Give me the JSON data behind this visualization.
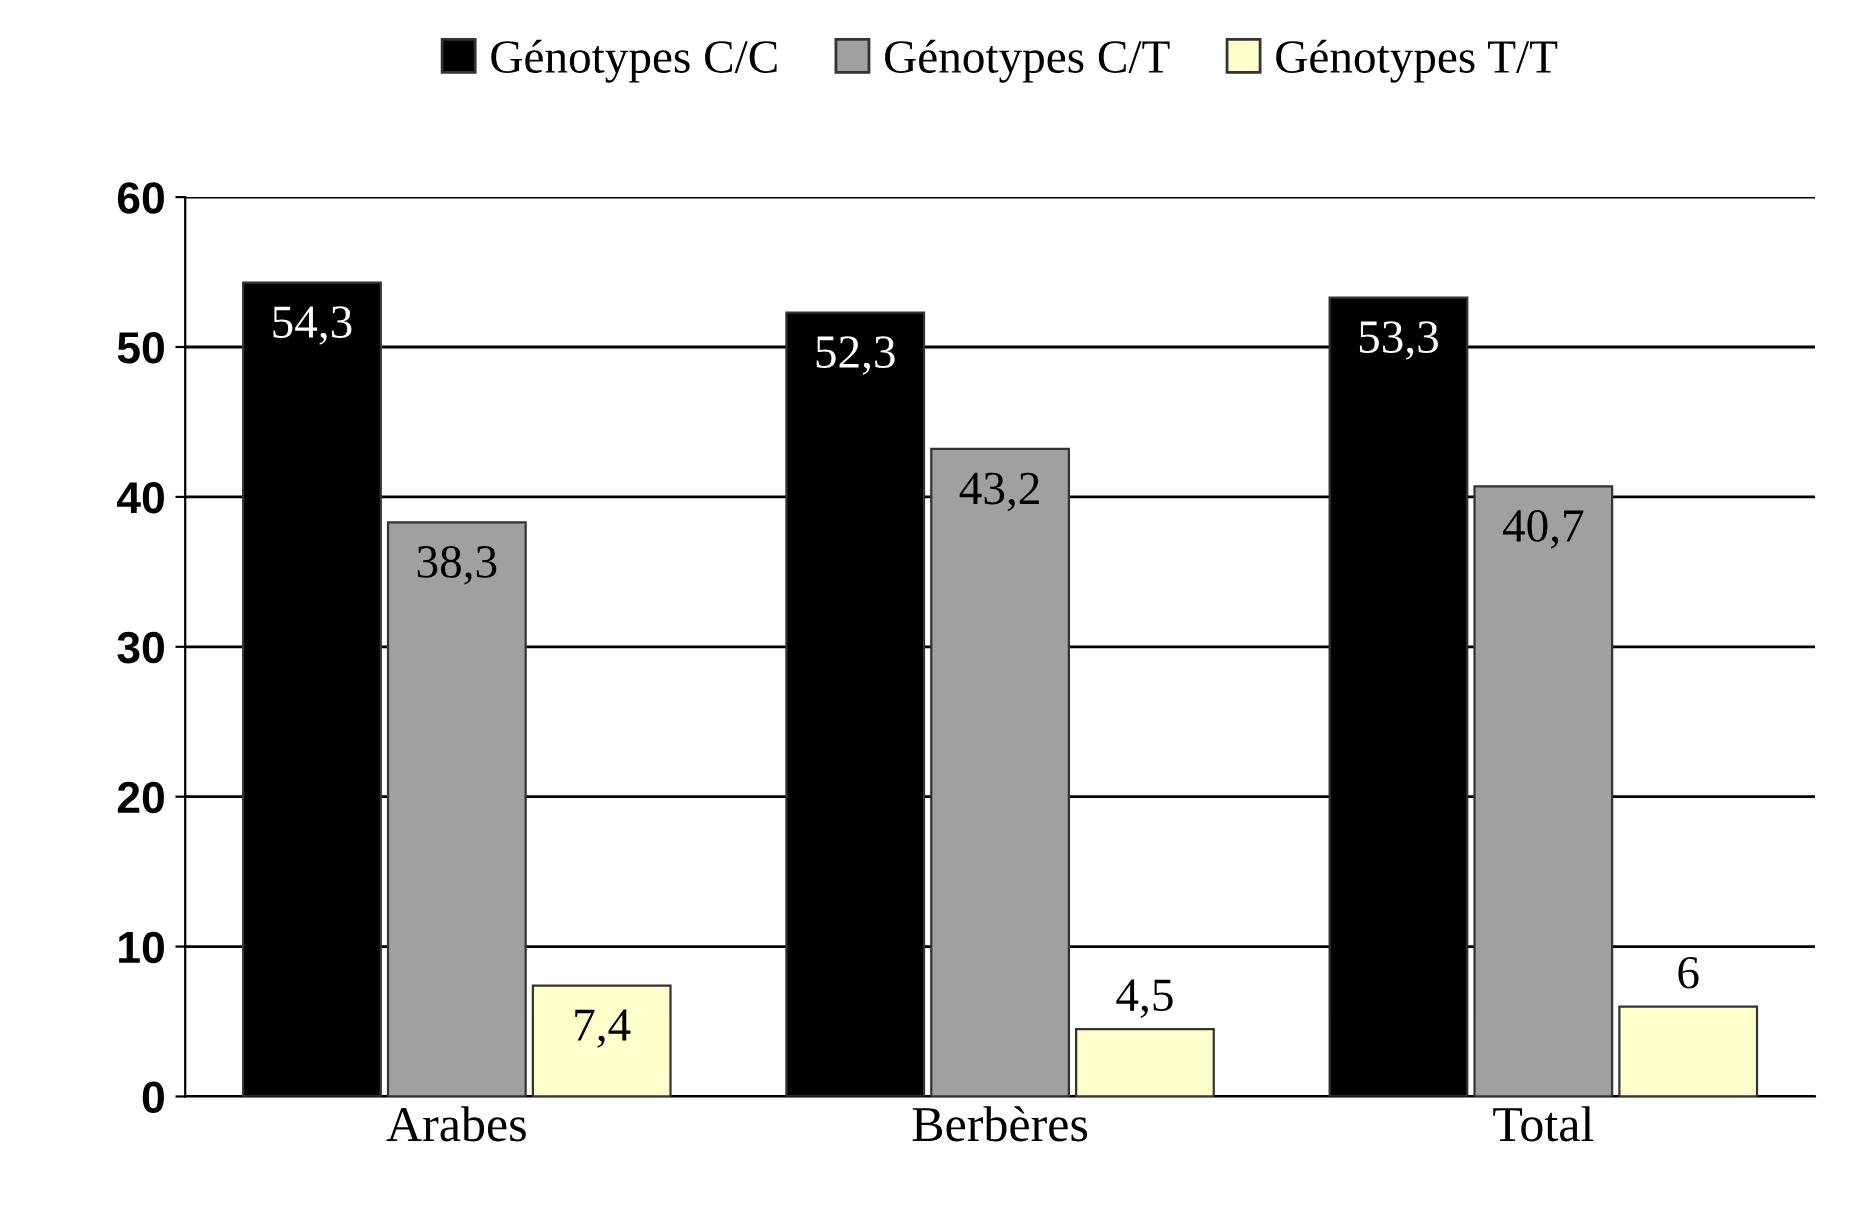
{
  "chart_data": {
    "type": "bar",
    "categories": [
      "Arabes",
      "Berbères",
      "Total"
    ],
    "series": [
      {
        "name": "Génotypes C/C",
        "color": "#000000",
        "values": [
          54.3,
          52.3,
          53.3
        ],
        "value_labels": [
          "54,3",
          "52,3",
          "53,3"
        ]
      },
      {
        "name": "Génotypes C/T",
        "color": "#a0a0a0",
        "values": [
          38.3,
          43.2,
          40.7
        ],
        "value_labels": [
          "38,3",
          "43,2",
          "40,7"
        ]
      },
      {
        "name": "Génotypes T/T",
        "color": "#ffffcc",
        "values": [
          7.4,
          4.5,
          6
        ],
        "value_labels": [
          "7,4",
          "4,5",
          "6"
        ]
      }
    ],
    "ylim": [
      0,
      60
    ],
    "yticks": [
      0,
      10,
      20,
      30,
      40,
      50,
      60
    ],
    "grid": "y",
    "legend": "top"
  }
}
